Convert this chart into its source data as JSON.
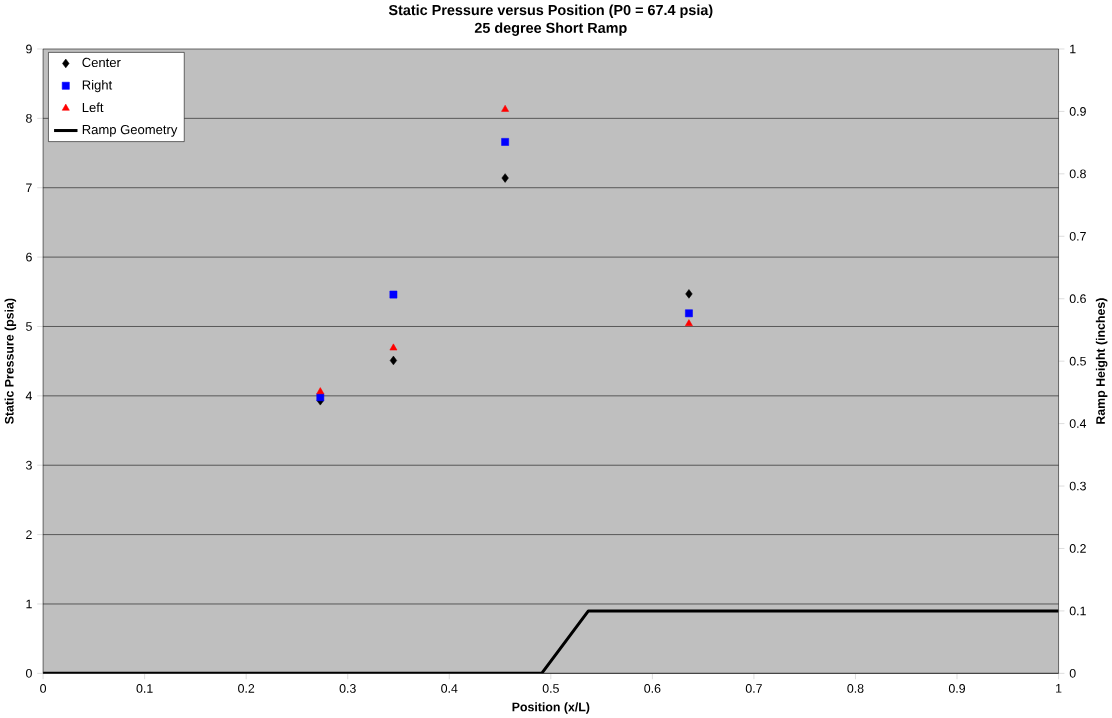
{
  "chart_data": {
    "type": "scatter",
    "title": "Static Pressure versus Position (P0 = 67.4 psia)",
    "subtitle": "25 degree Short Ramp",
    "xlabel": "Position (x/L)",
    "ylabel": "Static Pressure (psia)",
    "y2label": "Ramp Height (inches)",
    "series": [
      {
        "name": "Center",
        "color": "#000000",
        "marker": "diamond",
        "x": [
          0.273,
          0.345,
          0.455,
          0.636
        ],
        "values": [
          3.93,
          4.51,
          7.14,
          5.47
        ]
      },
      {
        "name": "Right",
        "color": "#0000ff",
        "marker": "square",
        "x": [
          0.273,
          0.345,
          0.455,
          0.636
        ],
        "values": [
          3.98,
          5.46,
          7.66,
          5.19
        ]
      },
      {
        "name": "Left",
        "color": "#ff0000",
        "marker": "triangle",
        "x": [
          0.273,
          0.345,
          0.455,
          0.636
        ],
        "values": [
          4.06,
          4.69,
          8.13,
          5.04
        ]
      },
      {
        "name": "Ramp Geometry",
        "color": "#000000",
        "type": "line",
        "axis": "y2",
        "marker": "none",
        "x": [
          0,
          0.491,
          0.537,
          1
        ],
        "values": [
          0,
          0,
          0.1,
          0.1
        ]
      }
    ],
    "xlim": [
      0,
      1
    ],
    "xticks": [
      0,
      0.1,
      0.2,
      0.3,
      0.4,
      0.5,
      0.6,
      0.7,
      0.8,
      0.9,
      1
    ],
    "ylim": [
      0,
      9
    ],
    "yticks": [
      0,
      1,
      2,
      3,
      4,
      5,
      6,
      7,
      8,
      9
    ],
    "y2lim": [
      0,
      1
    ],
    "y2ticks": [
      0,
      0.1,
      0.2,
      0.3,
      0.4,
      0.5,
      0.6,
      0.7,
      0.8,
      0.9,
      1
    ],
    "grid": "y",
    "legend": "top left"
  }
}
